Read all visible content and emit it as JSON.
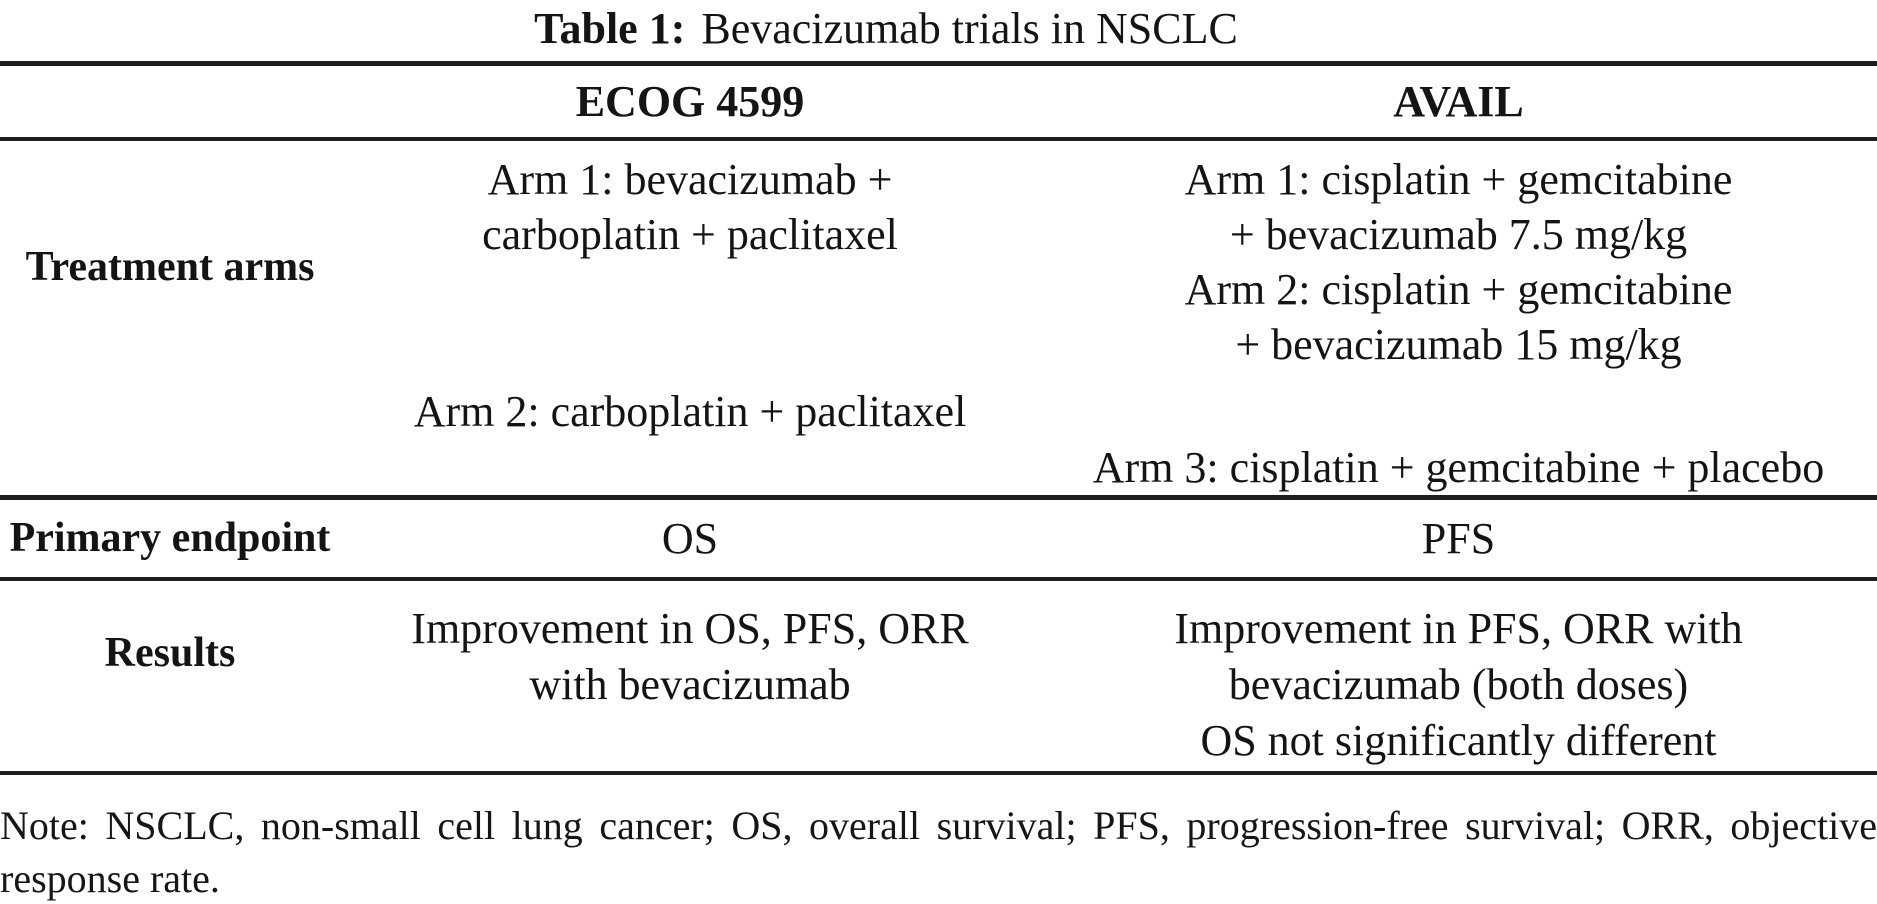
{
  "title": {
    "label": "Table 1:",
    "text": "Bevacizumab trials in NSCLC"
  },
  "table": {
    "columns": [
      "ECOG 4599",
      "AVAIL"
    ],
    "rows": [
      {
        "label": "Treatment arms",
        "ecog": [
          "Arm 1: bevacizumab +",
          "carboplatin + paclitaxel",
          "Arm 2: carboplatin + paclitaxel"
        ],
        "avail": [
          "Arm 1: cisplatin + gemcitabine",
          "+ bevacizumab 7.5 mg/kg",
          "Arm 2: cisplatin + gemcitabine",
          "+ bevacizumab 15 mg/kg",
          "Arm 3: cisplatin + gemcitabine + placebo"
        ]
      },
      {
        "label": "Primary endpoint",
        "ecog": [
          "OS"
        ],
        "avail": [
          "PFS"
        ]
      },
      {
        "label": "Results",
        "ecog": [
          "Improvement in OS, PFS, ORR",
          "with bevacizumab"
        ],
        "avail": [
          "Improvement in PFS, ORR with",
          "bevacizumab (both doses)",
          "OS not significantly different"
        ]
      }
    ]
  },
  "note": {
    "lines": [
      "Note: NSCLC, non-small cell lung cancer; OS, overall survival; PFS, progression-free survival; ORR, objective",
      "response rate."
    ]
  },
  "colors": {
    "ink": "#141414",
    "rule": "#1c1c1c",
    "background": "#ffffff"
  }
}
